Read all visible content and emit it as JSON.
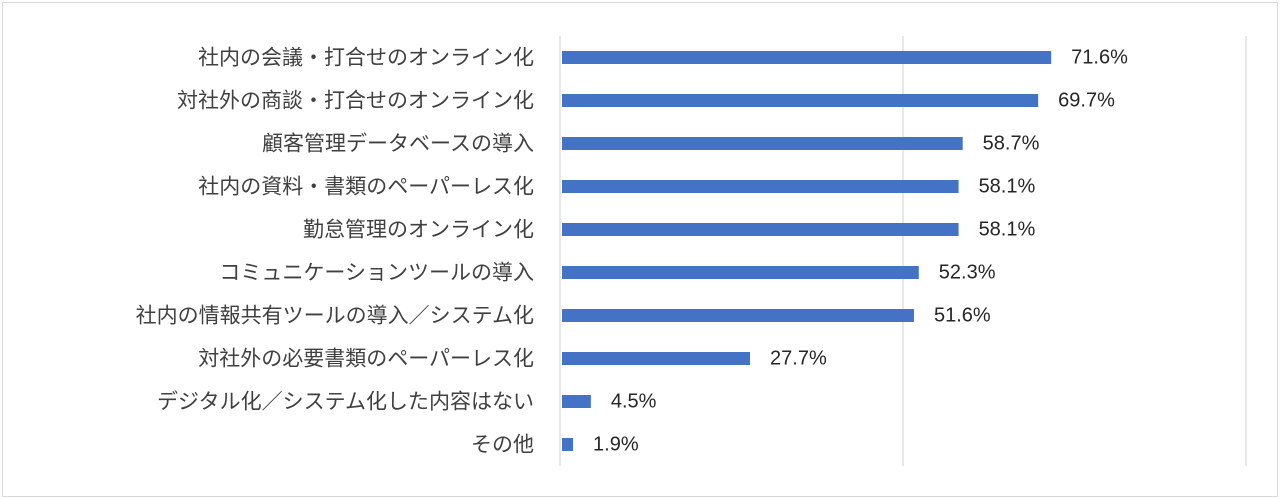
{
  "chart_data": {
    "type": "bar",
    "orientation": "horizontal",
    "categories": [
      "社内の会議・打合せのオンライン化",
      "対社外の商談・打合せのオンライン化",
      "顧客管理データベースの導入",
      "社内の資料・書類のペーパーレス化",
      "勤怠管理のオンライン化",
      "コミュニケーションツールの導入",
      "社内の情報共有ツールの導入／システム化",
      "対社外の必要書類のペーパーレス化",
      "デジタル化／システム化した内容はない",
      "その他"
    ],
    "values": [
      71.6,
      69.7,
      58.7,
      58.1,
      58.1,
      52.3,
      51.6,
      27.7,
      4.5,
      1.9
    ],
    "value_labels": [
      "71.6%",
      "69.7%",
      "58.7%",
      "58.1%",
      "58.1%",
      "52.3%",
      "51.6%",
      "27.7%",
      "4.5%",
      "1.9%"
    ],
    "xlim": [
      0,
      100
    ],
    "gridlines": [
      0,
      50,
      100
    ],
    "grid": true,
    "legend": "none",
    "colors": {
      "bar": "#4472C4",
      "grid": "#d9d9d9",
      "label": "#404040",
      "value": "#262626"
    }
  }
}
